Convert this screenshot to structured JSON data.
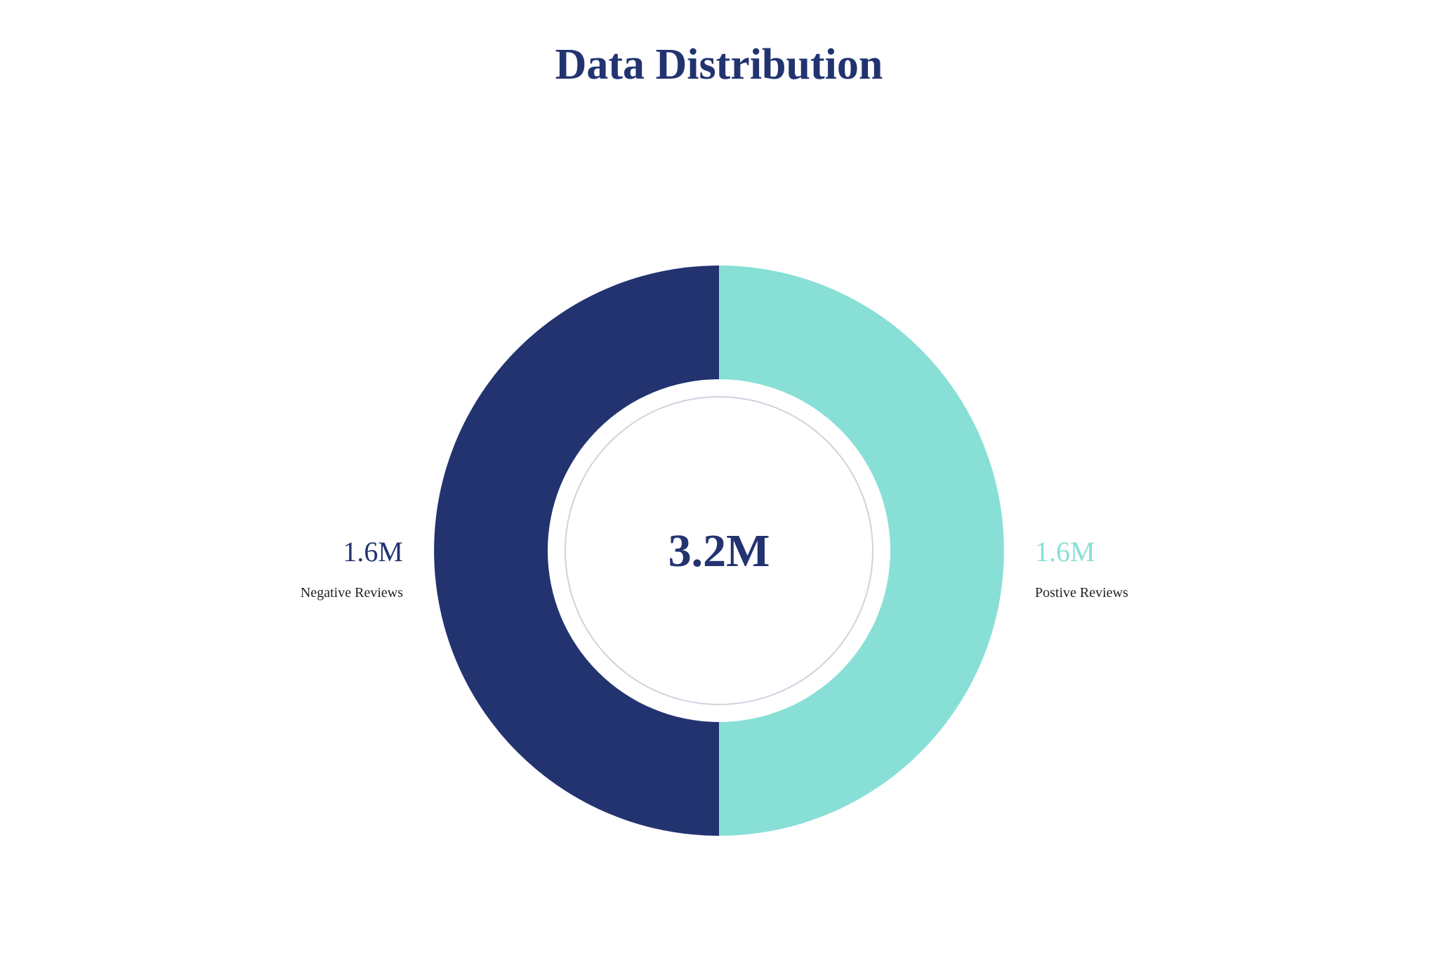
{
  "chart_data": {
    "type": "pie",
    "style": "donut",
    "title": "Data Distribution",
    "total_label": "3.2M",
    "slices": [
      {
        "name": "Negative Reviews",
        "value": 1.6,
        "value_label": "1.6M",
        "color": "#223370"
      },
      {
        "name": "Postive Reviews",
        "value": 1.6,
        "value_label": "1.6M",
        "color": "#88dfd6"
      }
    ]
  },
  "colors": {
    "title": "#223370",
    "center_text": "#223370",
    "inner_ring": "#d0d2de"
  }
}
